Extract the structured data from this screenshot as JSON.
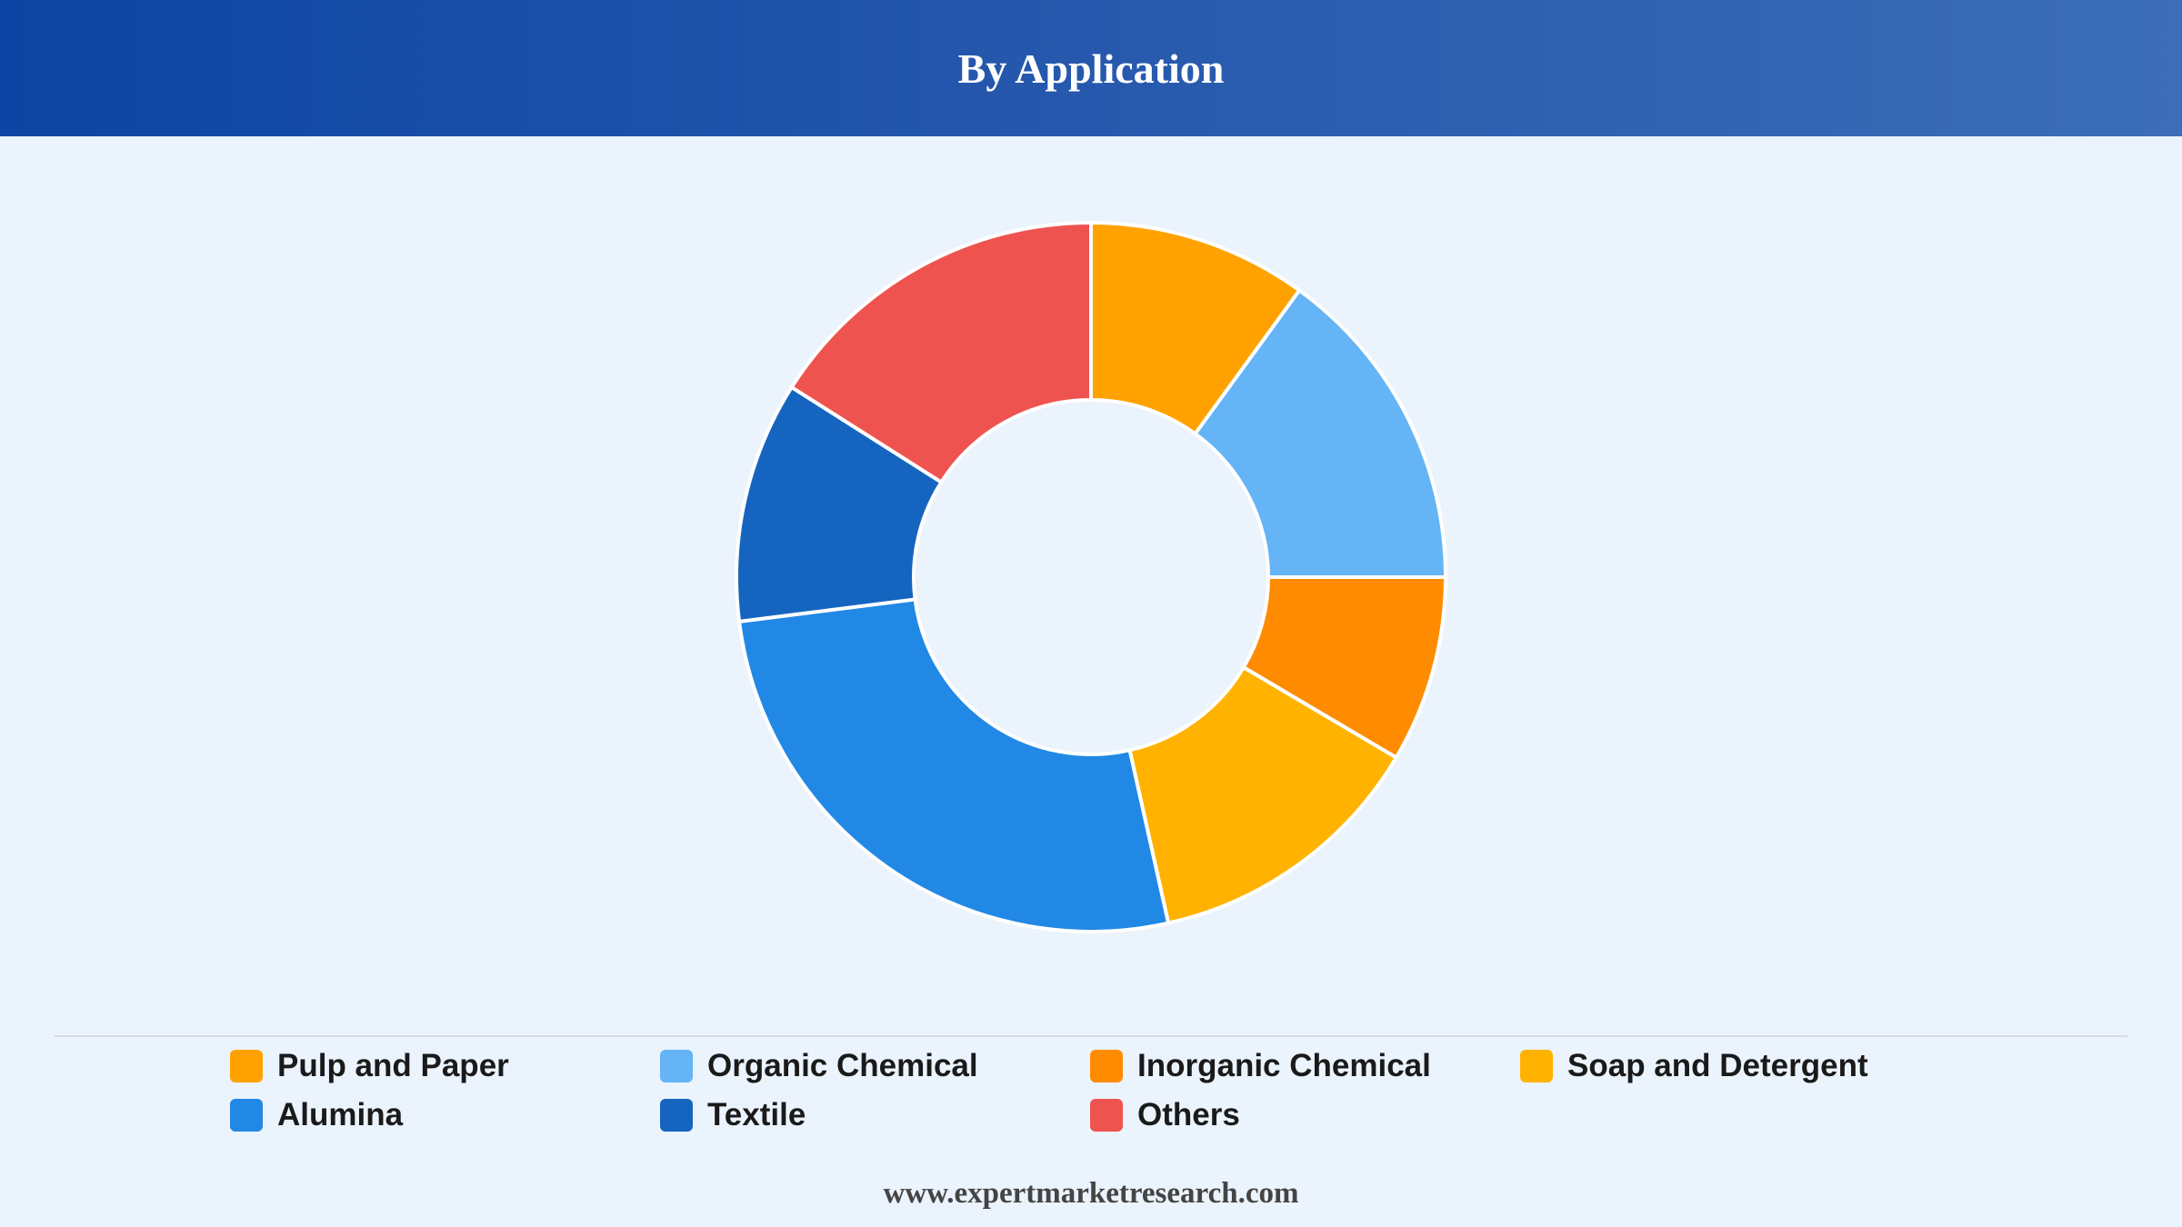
{
  "header": {
    "title": "By Application"
  },
  "chart_data": {
    "type": "pie",
    "title": "By Application",
    "donut": true,
    "categories": [
      "Pulp and Paper",
      "Organic Chemical",
      "Inorganic Chemical",
      "Soap and Detergent",
      "Alumina",
      "Textile",
      "Others"
    ],
    "values": [
      10,
      15,
      8.5,
      13,
      26.5,
      11,
      16
    ],
    "colors": [
      "#ffa200",
      "#64b4f6",
      "#ff8c00",
      "#ffb300",
      "#2188e6",
      "#1565c0",
      "#ef5350"
    ],
    "legend_position": "bottom",
    "start_angle": "12 o'clock",
    "direction": "clockwise"
  },
  "footer": {
    "url": "www.expertmarketresearch.com"
  }
}
